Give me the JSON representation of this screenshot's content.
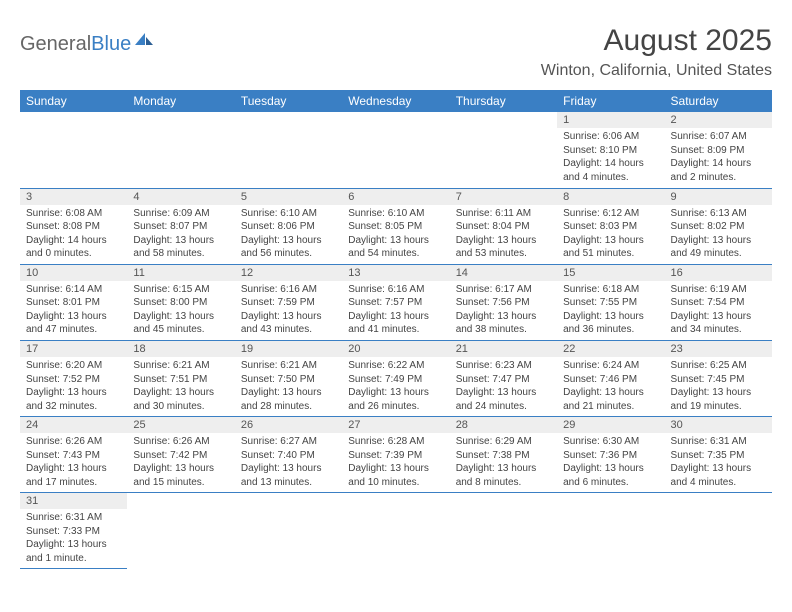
{
  "logo": {
    "part1": "General",
    "part2": "Blue"
  },
  "title": "August 2025",
  "location": "Winton, California, United States",
  "colors": {
    "header_bg": "#3a7fc4",
    "header_text": "#ffffff",
    "daynum_bg": "#eeeeee",
    "divider": "#3a7fc4",
    "text": "#444444"
  },
  "weekdays": [
    "Sunday",
    "Monday",
    "Tuesday",
    "Wednesday",
    "Thursday",
    "Friday",
    "Saturday"
  ],
  "weeks": [
    [
      null,
      null,
      null,
      null,
      null,
      {
        "n": "1",
        "sr": "Sunrise: 6:06 AM",
        "ss": "Sunset: 8:10 PM",
        "dl1": "Daylight: 14 hours",
        "dl2": "and 4 minutes."
      },
      {
        "n": "2",
        "sr": "Sunrise: 6:07 AM",
        "ss": "Sunset: 8:09 PM",
        "dl1": "Daylight: 14 hours",
        "dl2": "and 2 minutes."
      }
    ],
    [
      {
        "n": "3",
        "sr": "Sunrise: 6:08 AM",
        "ss": "Sunset: 8:08 PM",
        "dl1": "Daylight: 14 hours",
        "dl2": "and 0 minutes."
      },
      {
        "n": "4",
        "sr": "Sunrise: 6:09 AM",
        "ss": "Sunset: 8:07 PM",
        "dl1": "Daylight: 13 hours",
        "dl2": "and 58 minutes."
      },
      {
        "n": "5",
        "sr": "Sunrise: 6:10 AM",
        "ss": "Sunset: 8:06 PM",
        "dl1": "Daylight: 13 hours",
        "dl2": "and 56 minutes."
      },
      {
        "n": "6",
        "sr": "Sunrise: 6:10 AM",
        "ss": "Sunset: 8:05 PM",
        "dl1": "Daylight: 13 hours",
        "dl2": "and 54 minutes."
      },
      {
        "n": "7",
        "sr": "Sunrise: 6:11 AM",
        "ss": "Sunset: 8:04 PM",
        "dl1": "Daylight: 13 hours",
        "dl2": "and 53 minutes."
      },
      {
        "n": "8",
        "sr": "Sunrise: 6:12 AM",
        "ss": "Sunset: 8:03 PM",
        "dl1": "Daylight: 13 hours",
        "dl2": "and 51 minutes."
      },
      {
        "n": "9",
        "sr": "Sunrise: 6:13 AM",
        "ss": "Sunset: 8:02 PM",
        "dl1": "Daylight: 13 hours",
        "dl2": "and 49 minutes."
      }
    ],
    [
      {
        "n": "10",
        "sr": "Sunrise: 6:14 AM",
        "ss": "Sunset: 8:01 PM",
        "dl1": "Daylight: 13 hours",
        "dl2": "and 47 minutes."
      },
      {
        "n": "11",
        "sr": "Sunrise: 6:15 AM",
        "ss": "Sunset: 8:00 PM",
        "dl1": "Daylight: 13 hours",
        "dl2": "and 45 minutes."
      },
      {
        "n": "12",
        "sr": "Sunrise: 6:16 AM",
        "ss": "Sunset: 7:59 PM",
        "dl1": "Daylight: 13 hours",
        "dl2": "and 43 minutes."
      },
      {
        "n": "13",
        "sr": "Sunrise: 6:16 AM",
        "ss": "Sunset: 7:57 PM",
        "dl1": "Daylight: 13 hours",
        "dl2": "and 41 minutes."
      },
      {
        "n": "14",
        "sr": "Sunrise: 6:17 AM",
        "ss": "Sunset: 7:56 PM",
        "dl1": "Daylight: 13 hours",
        "dl2": "and 38 minutes."
      },
      {
        "n": "15",
        "sr": "Sunrise: 6:18 AM",
        "ss": "Sunset: 7:55 PM",
        "dl1": "Daylight: 13 hours",
        "dl2": "and 36 minutes."
      },
      {
        "n": "16",
        "sr": "Sunrise: 6:19 AM",
        "ss": "Sunset: 7:54 PM",
        "dl1": "Daylight: 13 hours",
        "dl2": "and 34 minutes."
      }
    ],
    [
      {
        "n": "17",
        "sr": "Sunrise: 6:20 AM",
        "ss": "Sunset: 7:52 PM",
        "dl1": "Daylight: 13 hours",
        "dl2": "and 32 minutes."
      },
      {
        "n": "18",
        "sr": "Sunrise: 6:21 AM",
        "ss": "Sunset: 7:51 PM",
        "dl1": "Daylight: 13 hours",
        "dl2": "and 30 minutes."
      },
      {
        "n": "19",
        "sr": "Sunrise: 6:21 AM",
        "ss": "Sunset: 7:50 PM",
        "dl1": "Daylight: 13 hours",
        "dl2": "and 28 minutes."
      },
      {
        "n": "20",
        "sr": "Sunrise: 6:22 AM",
        "ss": "Sunset: 7:49 PM",
        "dl1": "Daylight: 13 hours",
        "dl2": "and 26 minutes."
      },
      {
        "n": "21",
        "sr": "Sunrise: 6:23 AM",
        "ss": "Sunset: 7:47 PM",
        "dl1": "Daylight: 13 hours",
        "dl2": "and 24 minutes."
      },
      {
        "n": "22",
        "sr": "Sunrise: 6:24 AM",
        "ss": "Sunset: 7:46 PM",
        "dl1": "Daylight: 13 hours",
        "dl2": "and 21 minutes."
      },
      {
        "n": "23",
        "sr": "Sunrise: 6:25 AM",
        "ss": "Sunset: 7:45 PM",
        "dl1": "Daylight: 13 hours",
        "dl2": "and 19 minutes."
      }
    ],
    [
      {
        "n": "24",
        "sr": "Sunrise: 6:26 AM",
        "ss": "Sunset: 7:43 PM",
        "dl1": "Daylight: 13 hours",
        "dl2": "and 17 minutes."
      },
      {
        "n": "25",
        "sr": "Sunrise: 6:26 AM",
        "ss": "Sunset: 7:42 PM",
        "dl1": "Daylight: 13 hours",
        "dl2": "and 15 minutes."
      },
      {
        "n": "26",
        "sr": "Sunrise: 6:27 AM",
        "ss": "Sunset: 7:40 PM",
        "dl1": "Daylight: 13 hours",
        "dl2": "and 13 minutes."
      },
      {
        "n": "27",
        "sr": "Sunrise: 6:28 AM",
        "ss": "Sunset: 7:39 PM",
        "dl1": "Daylight: 13 hours",
        "dl2": "and 10 minutes."
      },
      {
        "n": "28",
        "sr": "Sunrise: 6:29 AM",
        "ss": "Sunset: 7:38 PM",
        "dl1": "Daylight: 13 hours",
        "dl2": "and 8 minutes."
      },
      {
        "n": "29",
        "sr": "Sunrise: 6:30 AM",
        "ss": "Sunset: 7:36 PM",
        "dl1": "Daylight: 13 hours",
        "dl2": "and 6 minutes."
      },
      {
        "n": "30",
        "sr": "Sunrise: 6:31 AM",
        "ss": "Sunset: 7:35 PM",
        "dl1": "Daylight: 13 hours",
        "dl2": "and 4 minutes."
      }
    ],
    [
      {
        "n": "31",
        "sr": "Sunrise: 6:31 AM",
        "ss": "Sunset: 7:33 PM",
        "dl1": "Daylight: 13 hours",
        "dl2": "and 1 minute."
      },
      null,
      null,
      null,
      null,
      null,
      null
    ]
  ]
}
